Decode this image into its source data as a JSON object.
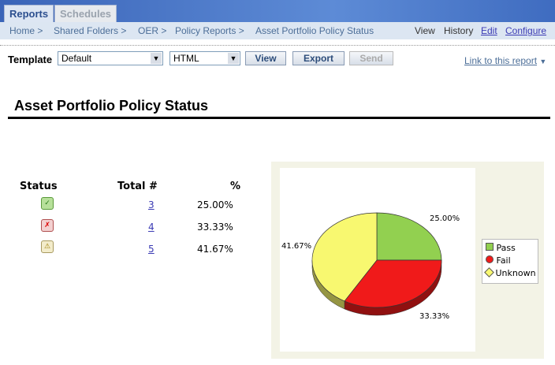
{
  "tabs": [
    {
      "label": "Reports"
    },
    {
      "label": "Schedules"
    }
  ],
  "breadcrumb": [
    "Home >",
    "Shared Folders >",
    "OER >",
    "Policy Reports >",
    "Asset Portfolio Policy Status"
  ],
  "actions": {
    "view": "View",
    "history": "History",
    "edit": "Edit",
    "configure": "Configure"
  },
  "toolbar": {
    "template_label": "Template",
    "template_value": "Default",
    "format_value": "HTML",
    "view": "View",
    "export": "Export",
    "send": "Send",
    "link": "Link to this report"
  },
  "report": {
    "title": "Asset Portfolio Policy Status",
    "headers": [
      "Status",
      "Total #",
      "%"
    ],
    "rows": [
      {
        "status": "pass",
        "total": "3",
        "pct": "25.00%"
      },
      {
        "status": "fail",
        "total": "4",
        "pct": "33.33%"
      },
      {
        "status": "unknown",
        "total": "5",
        "pct": "41.67%"
      }
    ]
  },
  "chart_data": {
    "type": "pie",
    "categories": [
      "Pass",
      "Fail",
      "Unknown"
    ],
    "values": [
      3,
      4,
      5
    ],
    "labels": [
      "25.00%",
      "33.33%",
      "41.67%"
    ],
    "colors": [
      "#92d050",
      "#f01a1a",
      "#f8f870"
    ],
    "legend": "right"
  }
}
